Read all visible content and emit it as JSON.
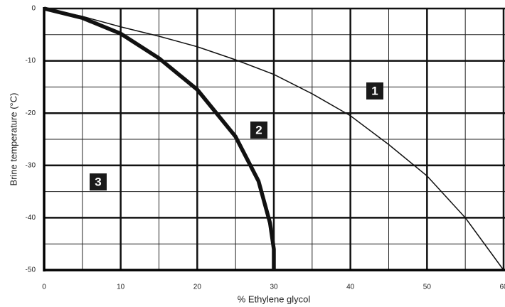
{
  "chart_data": {
    "type": "line",
    "x_label": "% Ethylene glycol",
    "y_label": "Brine temperature (°C)",
    "xlim": [
      0,
      60
    ],
    "ylim": [
      -50,
      0
    ],
    "xticks": [
      0,
      10,
      20,
      30,
      40,
      50,
      60
    ],
    "yticks": [
      0,
      -10,
      -20,
      -30,
      -40,
      -50
    ],
    "x_minor_ticks": [
      5,
      15,
      25,
      35,
      45,
      55
    ],
    "y_minor_ticks": [
      -5,
      -15,
      -25,
      -35,
      -45
    ],
    "grid": true,
    "series": [
      {
        "color": "#111111",
        "x": [
          0,
          5,
          10,
          15,
          20,
          25,
          30,
          35,
          40,
          45,
          50,
          55,
          60
        ],
        "values": [
          0,
          -1.5,
          -3.5,
          -5.3,
          -7.3,
          -9.8,
          -12.6,
          -16.3,
          -20.5,
          -26,
          -32,
          -40,
          -50
        ]
      },
      {
        "color": "#111111",
        "x": [
          0,
          5,
          10,
          15,
          20,
          25,
          28,
          29.5,
          30,
          30
        ],
        "values": [
          0,
          -1.8,
          -4.8,
          -9.5,
          -15.5,
          -24.5,
          -33,
          -41,
          -46,
          -50
        ]
      }
    ],
    "annotations": [
      "1",
      "2",
      "3"
    ]
  }
}
